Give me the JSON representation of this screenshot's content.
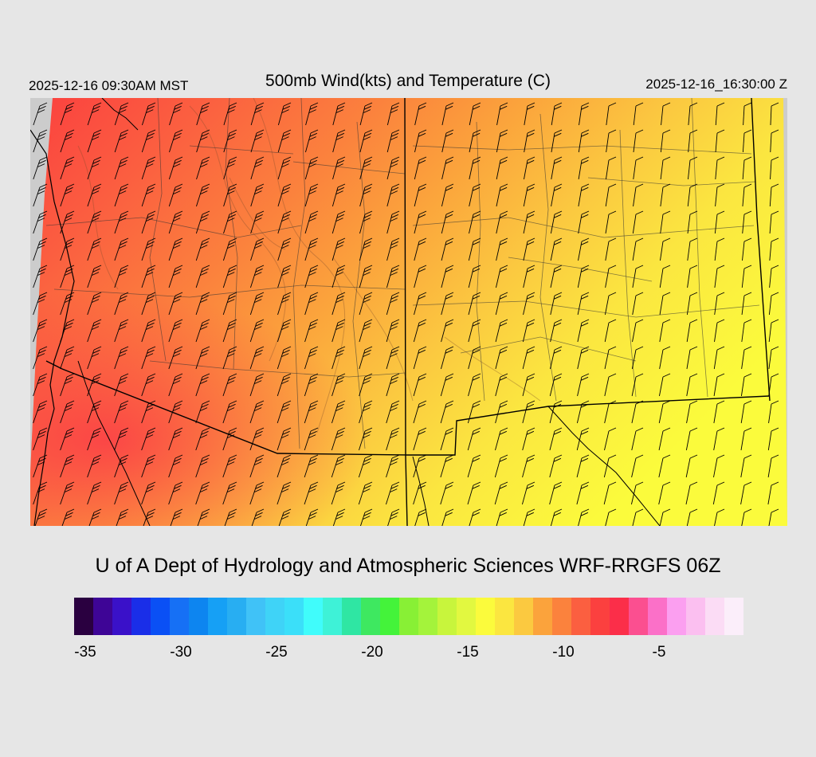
{
  "header": {
    "title": "500mb Wind(kts) and Temperature (C)",
    "valid_local": "2025-12-16 09:30AM MST",
    "valid_utc": "2025-12-16_16:30:00 Z"
  },
  "footer": {
    "credit": "U of A Dept of Hydrology and Atmospheric Sciences WRF-RRGFS 06Z"
  },
  "map": {
    "field": "500mb temperature (C)",
    "overlay": "wind barbs (kts)",
    "temperature_gradient": "cold (-11 C) in the west/northwest, warming to about -15 C yellow toward the southeast",
    "colors": {
      "background": "#e6e6e6",
      "no_data": "#cccccc",
      "border_lines": "#000000",
      "county_lines": "#333333"
    }
  },
  "colorbar": {
    "tick_labels": [
      "-35",
      "-30",
      "-25",
      "-20",
      "-15",
      "-10",
      "-5"
    ],
    "tick_values": [
      -35,
      -30,
      -25,
      -20,
      -15,
      -10,
      -5
    ],
    "range_min": -36,
    "range_max": -1,
    "colors": [
      "#2a0040",
      "#3e0596",
      "#3a11c9",
      "#1a2ee8",
      "#0a50f5",
      "#1670f5",
      "#0d85f0",
      "#16a0f5",
      "#28aef2",
      "#40c2f7",
      "#3fd3f7",
      "#3bdff9",
      "#40fcfb",
      "#3ef2d7",
      "#2fe6a3",
      "#3ee860",
      "#44f33a",
      "#88f035",
      "#a4f33b",
      "#c8f53c",
      "#e2f840",
      "#fbfb3c",
      "#fbe640",
      "#fbc940",
      "#fba33c",
      "#fb823d",
      "#fb5f40",
      "#fb403f",
      "#fb2e49",
      "#fb4f90",
      "#fb70c8",
      "#fb9ff0",
      "#fbbff0",
      "#fbdcf5",
      "#fbeefa"
    ]
  }
}
